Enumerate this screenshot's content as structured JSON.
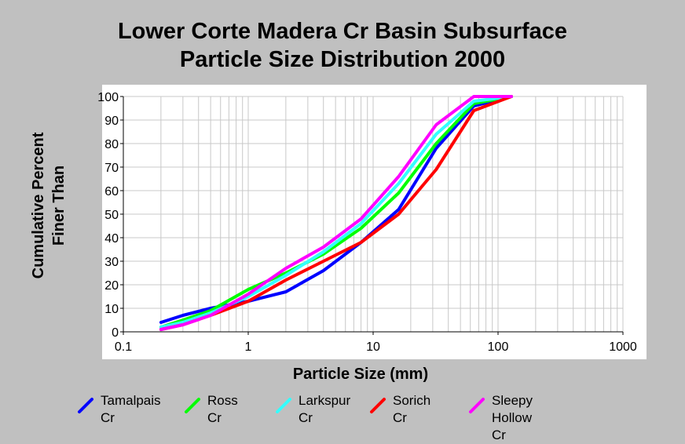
{
  "chart_data": {
    "type": "line",
    "title_lines": [
      "Lower Corte Madera Cr Basin Subsurface",
      "Particle Size Distribution 2000"
    ],
    "xlabel": "Particle Size (mm)",
    "ylabel_lines": [
      "Cumulative Percent",
      "Finer Than"
    ],
    "x_scale": "log",
    "xlim": [
      0.1,
      1000
    ],
    "ylim": [
      0,
      100
    ],
    "x_ticks": [
      "0.1",
      "1",
      "10",
      "100",
      "1000"
    ],
    "y_ticks": [
      "0",
      "10",
      "20",
      "30",
      "40",
      "50",
      "60",
      "70",
      "80",
      "90",
      "100"
    ],
    "grid": true,
    "legend_position": "bottom",
    "series": [
      {
        "name": "Tamalpais\nCr",
        "color": "#0000ff",
        "x": [
          0.2,
          0.3,
          0.5,
          1,
          2,
          4,
          8,
          16,
          32,
          64,
          128
        ],
        "y": [
          4,
          7,
          10,
          13,
          17,
          26,
          38,
          52,
          78,
          96,
          100
        ]
      },
      {
        "name": "Ross Cr",
        "color": "#00ff00",
        "x": [
          0.2,
          0.3,
          0.5,
          1,
          2,
          4,
          8,
          16,
          32,
          64,
          128
        ],
        "y": [
          2,
          5,
          9,
          18,
          25,
          33,
          44,
          59,
          80,
          97,
          100
        ]
      },
      {
        "name": "Larkspur\nCr",
        "color": "#33ffff",
        "x": [
          0.2,
          0.3,
          0.5,
          1,
          2,
          4,
          8,
          16,
          32,
          64,
          128
        ],
        "y": [
          2,
          4,
          8,
          15,
          24,
          34,
          46,
          63,
          84,
          98,
          100
        ]
      },
      {
        "name": "Sorich Cr",
        "color": "#ff0000",
        "x": [
          0.2,
          0.3,
          0.5,
          1,
          2,
          4,
          8,
          16,
          32,
          64,
          128
        ],
        "y": [
          1,
          3,
          7,
          13,
          22,
          30,
          38,
          50,
          69,
          94,
          100
        ]
      },
      {
        "name": "Sleepy\nHollow Cr",
        "color": "#ff00ff",
        "x": [
          0.2,
          0.3,
          0.5,
          1,
          2,
          4,
          8,
          16,
          32,
          64,
          128
        ],
        "y": [
          1,
          3,
          7,
          16,
          27,
          36,
          48,
          66,
          88,
          100,
          100
        ]
      }
    ]
  }
}
